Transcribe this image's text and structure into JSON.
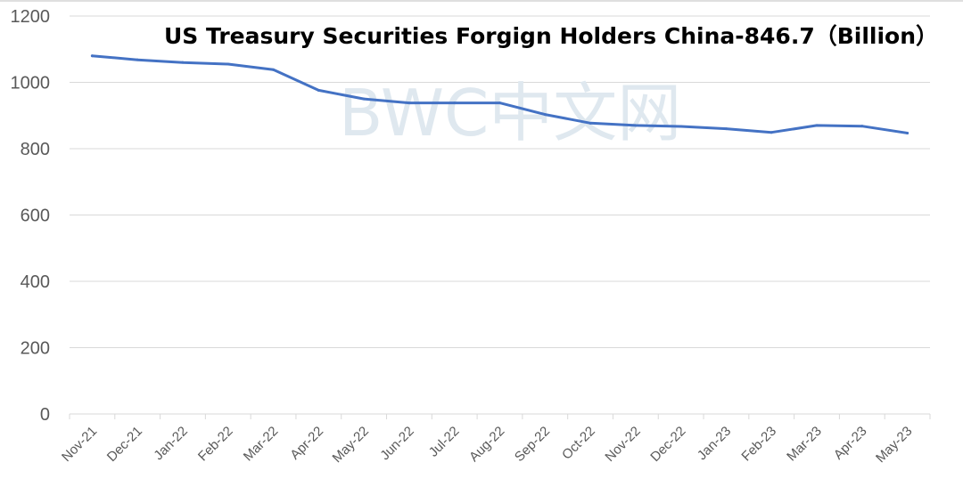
{
  "chart_data": {
    "type": "line",
    "title": "US Treasury Securities Forgign Holders China-846.7（Billion）",
    "xlabel": "",
    "ylabel": "",
    "ylim": [
      0,
      1200
    ],
    "yticks": [
      0,
      200,
      400,
      600,
      800,
      1000,
      1200
    ],
    "grid": true,
    "categories": [
      "Nov-21",
      "Dec-21",
      "Jan-22",
      "Feb-22",
      "Mar-22",
      "Apr-22",
      "May-22",
      "Jun-22",
      "Jul-22",
      "Aug-22",
      "Sep-22",
      "Oct-22",
      "Nov-22",
      "Dec-22",
      "Jan-23",
      "Feb-23",
      "Mar-23",
      "Apr-23",
      "May-23"
    ],
    "series": [
      {
        "values": [
          1080,
          1068,
          1060,
          1055,
          1038,
          976,
          950,
          938,
          938,
          938,
          903,
          877,
          870,
          867,
          860,
          849,
          870,
          868,
          847
        ],
        "color": "#4472c4"
      }
    ]
  },
  "watermark": "BWC中文网"
}
